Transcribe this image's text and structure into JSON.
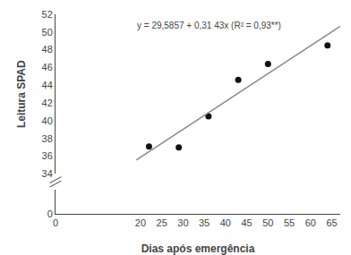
{
  "chart_data": {
    "type": "scatter",
    "xlabel": "Dias após emergência",
    "ylabel": "Leitura SPAD",
    "annotation": "y = 29,5857 + 0,31 43x (R² = 0,93**)",
    "series": [
      {
        "type": "scatter",
        "marker": "circle",
        "color": "#111111",
        "x": [
          22,
          29,
          36,
          43,
          50,
          64
        ],
        "values": [
          37.1,
          37.0,
          40.5,
          44.6,
          46.4,
          48.5
        ]
      },
      {
        "type": "line",
        "line_style": "solid",
        "color": "#888888",
        "x": [
          19,
          67
        ],
        "values": [
          35.5574,
          50.6438
        ]
      }
    ],
    "xlim": [
      0,
      67
    ],
    "xticks": [
      0,
      20,
      25,
      30,
      35,
      40,
      45,
      50,
      55,
      60,
      65
    ],
    "ylim": [
      34,
      52
    ],
    "yticks": [
      34,
      36,
      38,
      40,
      42,
      44,
      46,
      48,
      50,
      52
    ],
    "ylim_lower": [
      0,
      2
    ],
    "yticks_lower": [
      0
    ],
    "grid": false
  }
}
